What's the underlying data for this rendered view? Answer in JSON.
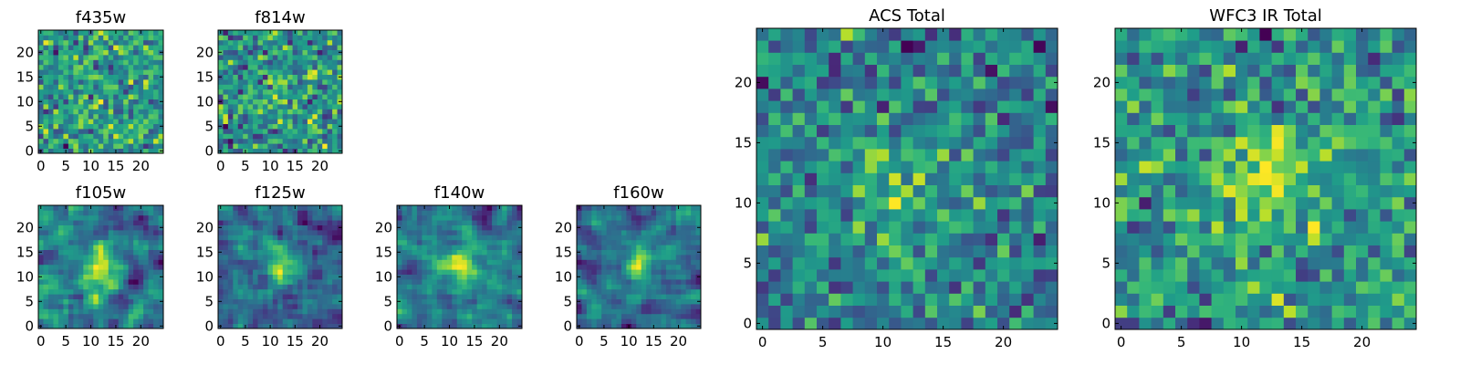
{
  "figure": {
    "colormap": "viridis"
  },
  "chart_data": [
    {
      "type": "heatmap",
      "title": "f435w",
      "size": 25,
      "xlim": [
        0,
        24
      ],
      "ylim": [
        0,
        24
      ],
      "xticks": [
        0,
        5,
        10,
        15,
        20
      ],
      "yticks": [
        0,
        5,
        10,
        15,
        20
      ],
      "seed": 11,
      "structure": "noise"
    },
    {
      "type": "heatmap",
      "title": "f814w",
      "size": 25,
      "xlim": [
        0,
        24
      ],
      "ylim": [
        0,
        24
      ],
      "xticks": [
        0,
        5,
        10,
        15,
        20
      ],
      "yticks": [
        0,
        5,
        10,
        15,
        20
      ],
      "seed": 23,
      "structure": "faint-center"
    },
    {
      "type": "heatmap",
      "title": "f105w",
      "size": 25,
      "xlim": [
        0,
        24
      ],
      "ylim": [
        0,
        24
      ],
      "xticks": [
        0,
        5,
        10,
        15,
        20
      ],
      "yticks": [
        0,
        5,
        10,
        15,
        20
      ],
      "seed": 37,
      "structure": "smooth-center"
    },
    {
      "type": "heatmap",
      "title": "f125w",
      "size": 25,
      "xlim": [
        0,
        24
      ],
      "ylim": [
        0,
        24
      ],
      "xticks": [
        0,
        5,
        10,
        15,
        20
      ],
      "yticks": [
        0,
        5,
        10,
        15,
        20
      ],
      "seed": 41,
      "structure": "smooth-center"
    },
    {
      "type": "heatmap",
      "title": "f140w",
      "size": 25,
      "xlim": [
        0,
        24
      ],
      "ylim": [
        0,
        24
      ],
      "xticks": [
        0,
        5,
        10,
        15,
        20
      ],
      "yticks": [
        0,
        5,
        10,
        15,
        20
      ],
      "seed": 53,
      "structure": "smooth-center"
    },
    {
      "type": "heatmap",
      "title": "f160w",
      "size": 25,
      "xlim": [
        0,
        24
      ],
      "ylim": [
        0,
        24
      ],
      "xticks": [
        0,
        5,
        10,
        15,
        20
      ],
      "yticks": [
        0,
        5,
        10,
        15,
        20
      ],
      "seed": 67,
      "structure": "smooth-center"
    },
    {
      "type": "heatmap",
      "title": "ACS Total",
      "size": 25,
      "xlim": [
        0,
        24
      ],
      "ylim": [
        0,
        24
      ],
      "xticks": [
        0,
        5,
        10,
        15,
        20
      ],
      "yticks": [
        0,
        5,
        10,
        15,
        20
      ],
      "seed": 79,
      "structure": "faint-center"
    },
    {
      "type": "heatmap",
      "title": "WFC3 IR Total",
      "size": 25,
      "xlim": [
        0,
        24
      ],
      "ylim": [
        0,
        24
      ],
      "xticks": [
        0,
        5,
        10,
        15,
        20
      ],
      "yticks": [
        0,
        5,
        10,
        15,
        20
      ],
      "seed": 97,
      "structure": "center"
    }
  ]
}
